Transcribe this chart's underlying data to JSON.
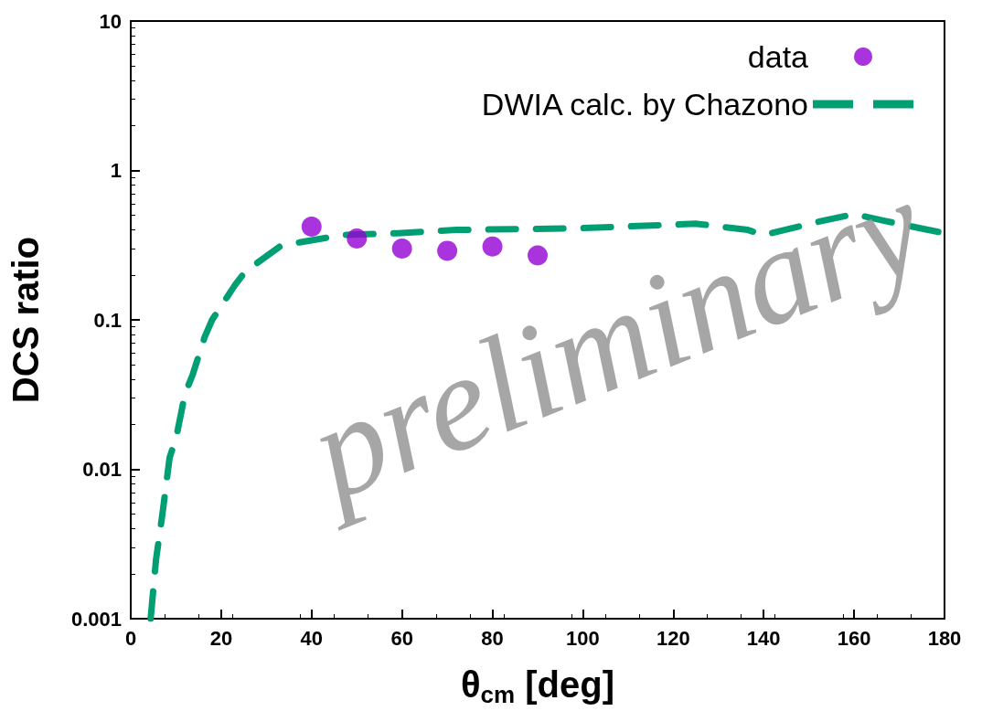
{
  "chart_data": {
    "type": "scatter",
    "xlabel": "θ$_{cm}$ [deg]",
    "ylabel": "DCS ratio",
    "xlim": [
      0,
      180
    ],
    "xticks": [
      0,
      20,
      40,
      60,
      80,
      100,
      120,
      140,
      160,
      180
    ],
    "ylim": [
      0.001,
      10
    ],
    "yticks": [
      0.001,
      0.01,
      0.1,
      1,
      10
    ],
    "log": "y",
    "grid": false,
    "legend": "top right",
    "annotations": [
      "preliminary"
    ],
    "series": [
      {
        "name": "data",
        "color": "#9400d3",
        "marker": "circle",
        "x": [
          40,
          50,
          60,
          70,
          80,
          90
        ],
        "values": [
          0.42,
          0.35,
          0.3,
          0.29,
          0.31,
          0.27
        ]
      },
      {
        "name": "DWIA calc. by Chazono",
        "type": "line",
        "color": "#009e73",
        "marker": "none",
        "line_style": "dashed",
        "x": [
          4.4,
          5.6,
          7,
          8.6,
          10,
          12,
          13.7,
          16.3,
          18,
          23,
          25.3,
          33,
          37.3,
          46.8,
          59,
          72,
          99,
          125,
          136.5,
          140,
          153,
          160,
          166.7,
          180
        ],
        "values": [
          0.001,
          0.0025,
          0.005,
          0.012,
          0.016,
          0.032,
          0.043,
          0.076,
          0.1,
          0.17,
          0.21,
          0.31,
          0.33,
          0.37,
          0.38,
          0.4,
          0.41,
          0.44,
          0.4,
          0.37,
          0.46,
          0.51,
          0.46,
          0.38
        ]
      }
    ]
  }
}
